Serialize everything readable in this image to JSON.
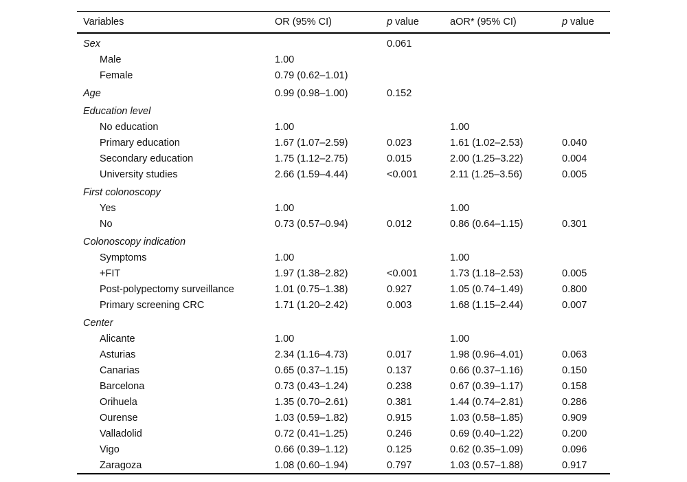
{
  "table": {
    "header": [
      {
        "parts": [
          {
            "t": "Variables"
          }
        ]
      },
      {
        "parts": [
          {
            "t": "OR (95% CI)"
          }
        ]
      },
      {
        "parts": [
          {
            "t": "p",
            "i": true
          },
          {
            "t": " value"
          }
        ]
      },
      {
        "parts": [
          {
            "t": "aOR* (95% CI)"
          }
        ]
      },
      {
        "parts": [
          {
            "t": "p",
            "i": true
          },
          {
            "t": " value"
          }
        ]
      }
    ],
    "rows": [
      {
        "type": "section",
        "label": "Sex",
        "or": "",
        "p": "0.061",
        "aor": "",
        "p2": ""
      },
      {
        "type": "item",
        "label": "Male",
        "or": "1.00",
        "p": "",
        "aor": "",
        "p2": ""
      },
      {
        "type": "item",
        "label": "Female",
        "or": "0.79 (0.62–1.01)",
        "p": "",
        "aor": "",
        "p2": ""
      },
      {
        "type": "section",
        "label": "Age",
        "or": "0.99 (0.98–1.00)",
        "p": "0.152",
        "aor": "",
        "p2": ""
      },
      {
        "type": "section",
        "label": "Education level",
        "or": "",
        "p": "",
        "aor": "",
        "p2": ""
      },
      {
        "type": "item",
        "label": "No education",
        "or": "1.00",
        "p": "",
        "aor": "1.00",
        "p2": ""
      },
      {
        "type": "item",
        "label": "Primary education",
        "or": "1.67 (1.07–2.59)",
        "p": "0.023",
        "aor": "1.61 (1.02–2.53)",
        "p2": "0.040"
      },
      {
        "type": "item",
        "label": "Secondary education",
        "or": "1.75 (1.12–2.75)",
        "p": "0.015",
        "aor": "2.00 (1.25–3.22)",
        "p2": "0.004"
      },
      {
        "type": "item",
        "label": "University studies",
        "or": "2.66 (1.59–4.44)",
        "p": "<0.001",
        "aor": "2.11 (1.25–3.56)",
        "p2": "0.005"
      },
      {
        "type": "section",
        "label": "First colonoscopy",
        "or": "",
        "p": "",
        "aor": "",
        "p2": ""
      },
      {
        "type": "item",
        "label": "Yes",
        "or": "1.00",
        "p": "",
        "aor": "1.00",
        "p2": ""
      },
      {
        "type": "item",
        "label": "No",
        "or": "0.73 (0.57–0.94)",
        "p": "0.012",
        "aor": "0.86 (0.64–1.15)",
        "p2": "0.301"
      },
      {
        "type": "section",
        "label": "Colonoscopy indication",
        "or": "",
        "p": "",
        "aor": "",
        "p2": ""
      },
      {
        "type": "item",
        "label": "Symptoms",
        "or": "1.00",
        "p": "",
        "aor": "1.00",
        "p2": ""
      },
      {
        "type": "item",
        "label": "+FIT",
        "or": "1.97 (1.38–2.82)",
        "p": "<0.001",
        "aor": "1.73 (1.18–2.53)",
        "p2": "0.005"
      },
      {
        "type": "item",
        "label": "Post-polypectomy surveillance",
        "or": "1.01 (0.75–1.38)",
        "p": "0.927",
        "aor": "1.05 (0.74–1.49)",
        "p2": "0.800"
      },
      {
        "type": "item",
        "label": "Primary screening CRC",
        "or": "1.71 (1.20–2.42)",
        "p": "0.003",
        "aor": "1.68 (1.15–2.44)",
        "p2": "0.007"
      },
      {
        "type": "section",
        "label": "Center",
        "or": "",
        "p": "",
        "aor": "",
        "p2": ""
      },
      {
        "type": "item",
        "label": "Alicante",
        "or": "1.00",
        "p": "",
        "aor": "1.00",
        "p2": ""
      },
      {
        "type": "item",
        "label": "Asturias",
        "or": "2.34 (1.16–4.73)",
        "p": "0.017",
        "aor": "1.98 (0.96–4.01)",
        "p2": "0.063"
      },
      {
        "type": "item",
        "label": "Canarias",
        "or": "0.65 (0.37–1.15)",
        "p": "0.137",
        "aor": "0.66 (0.37–1.16)",
        "p2": "0.150"
      },
      {
        "type": "item",
        "label": "Barcelona",
        "or": "0.73 (0.43–1.24)",
        "p": "0.238",
        "aor": "0.67 (0.39–1.17)",
        "p2": "0.158"
      },
      {
        "type": "item",
        "label": "Orihuela",
        "or": "1.35 (0.70–2.61)",
        "p": "0.381",
        "aor": "1.44 (0.74–2.81)",
        "p2": "0.286"
      },
      {
        "type": "item",
        "label": "Ourense",
        "or": "1.03 (0.59–1.82)",
        "p": "0.915",
        "aor": "1.03 (0.58–1.85)",
        "p2": "0.909"
      },
      {
        "type": "item",
        "label": "Valladolid",
        "or": "0.72 (0.41–1.25)",
        "p": "0.246",
        "aor": "0.69 (0.40–1.22)",
        "p2": "0.200"
      },
      {
        "type": "item",
        "label": "Vigo",
        "or": "0.66 (0.39–1.12)",
        "p": "0.125",
        "aor": "0.62 (0.35–1.09)",
        "p2": "0.096"
      },
      {
        "type": "item",
        "label": "Zaragoza",
        "or": "1.08 (0.60–1.94)",
        "p": "0.797",
        "aor": "1.03 (0.57–1.88)",
        "p2": "0.917"
      }
    ]
  }
}
